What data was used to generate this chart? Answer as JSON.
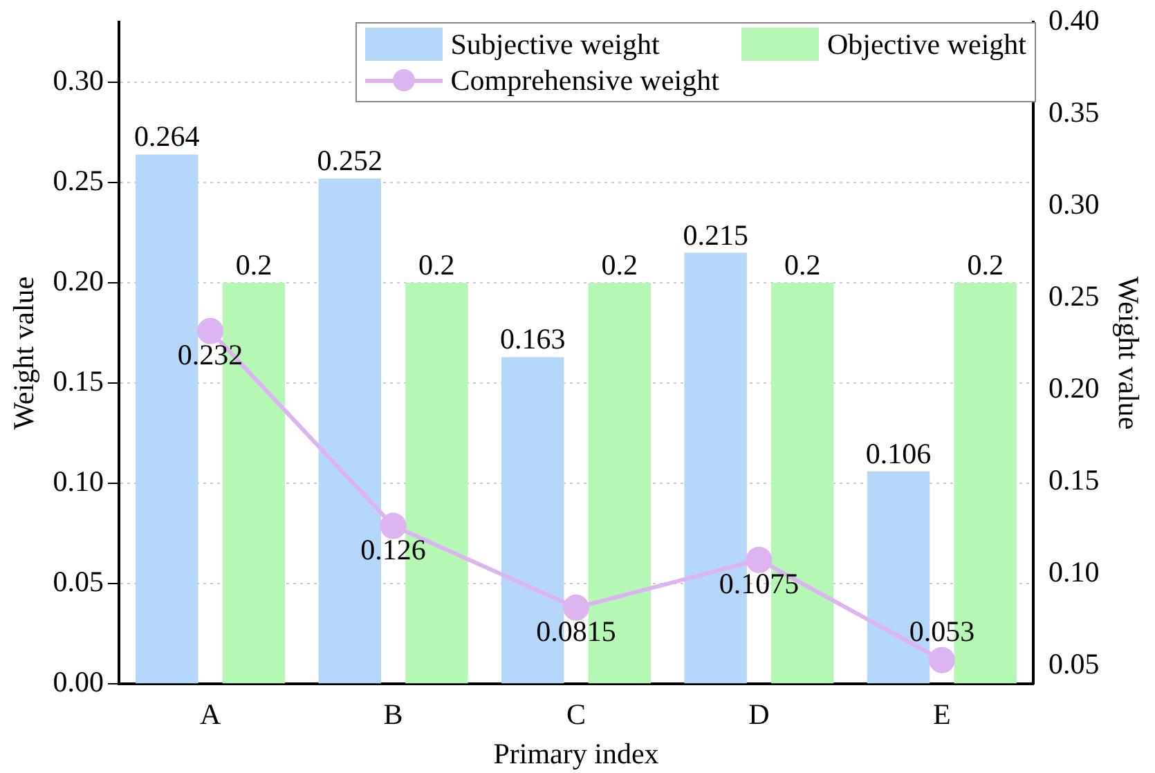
{
  "chart_data": {
    "type": "bar",
    "xlabel": "Primary index",
    "ylabel": "Weight value",
    "y2label": "Weight value",
    "categories": [
      "A",
      "B",
      "C",
      "D",
      "E"
    ],
    "series": [
      {
        "name": "Subjective weight",
        "color": "#b4d7fa",
        "values": [
          0.264,
          0.252,
          0.163,
          0.215,
          0.106
        ]
      },
      {
        "name": "Objective weight",
        "color": "#b4f8b4",
        "values": [
          0.2,
          0.2,
          0.2,
          0.2,
          0.2
        ]
      },
      {
        "name": "Comprehensive weight",
        "type": "line",
        "axis": "y2",
        "color": "#dcb4f0",
        "marker": "circle",
        "values": [
          0.232,
          0.126,
          0.0815,
          0.1075,
          0.053
        ]
      }
    ],
    "ylim": [
      0,
      0.33
    ],
    "yticks": [
      {
        "value": 0,
        "label": "0.00"
      },
      {
        "value": 0.05,
        "label": "0.05"
      },
      {
        "value": 0.1,
        "label": "0.10"
      },
      {
        "value": 0.15,
        "label": "0.15"
      },
      {
        "value": 0.2,
        "label": "0.20"
      },
      {
        "value": 0.25,
        "label": "0.25"
      },
      {
        "value": 0.3,
        "label": "0.30"
      }
    ],
    "y2lim": [
      0.04,
      0.4
    ],
    "y2ticks": [
      {
        "value": 0.05,
        "label": "0.05"
      },
      {
        "value": 0.1,
        "label": "0.10"
      },
      {
        "value": 0.15,
        "label": "0.15"
      },
      {
        "value": 0.2,
        "label": "0.20"
      },
      {
        "value": 0.25,
        "label": "0.25"
      },
      {
        "value": 0.3,
        "label": "0.30"
      },
      {
        "value": 0.35,
        "label": "0.35"
      },
      {
        "value": 0.4,
        "label": "0.40"
      }
    ],
    "grid": "y",
    "legend": "top right",
    "data_labels": true
  }
}
